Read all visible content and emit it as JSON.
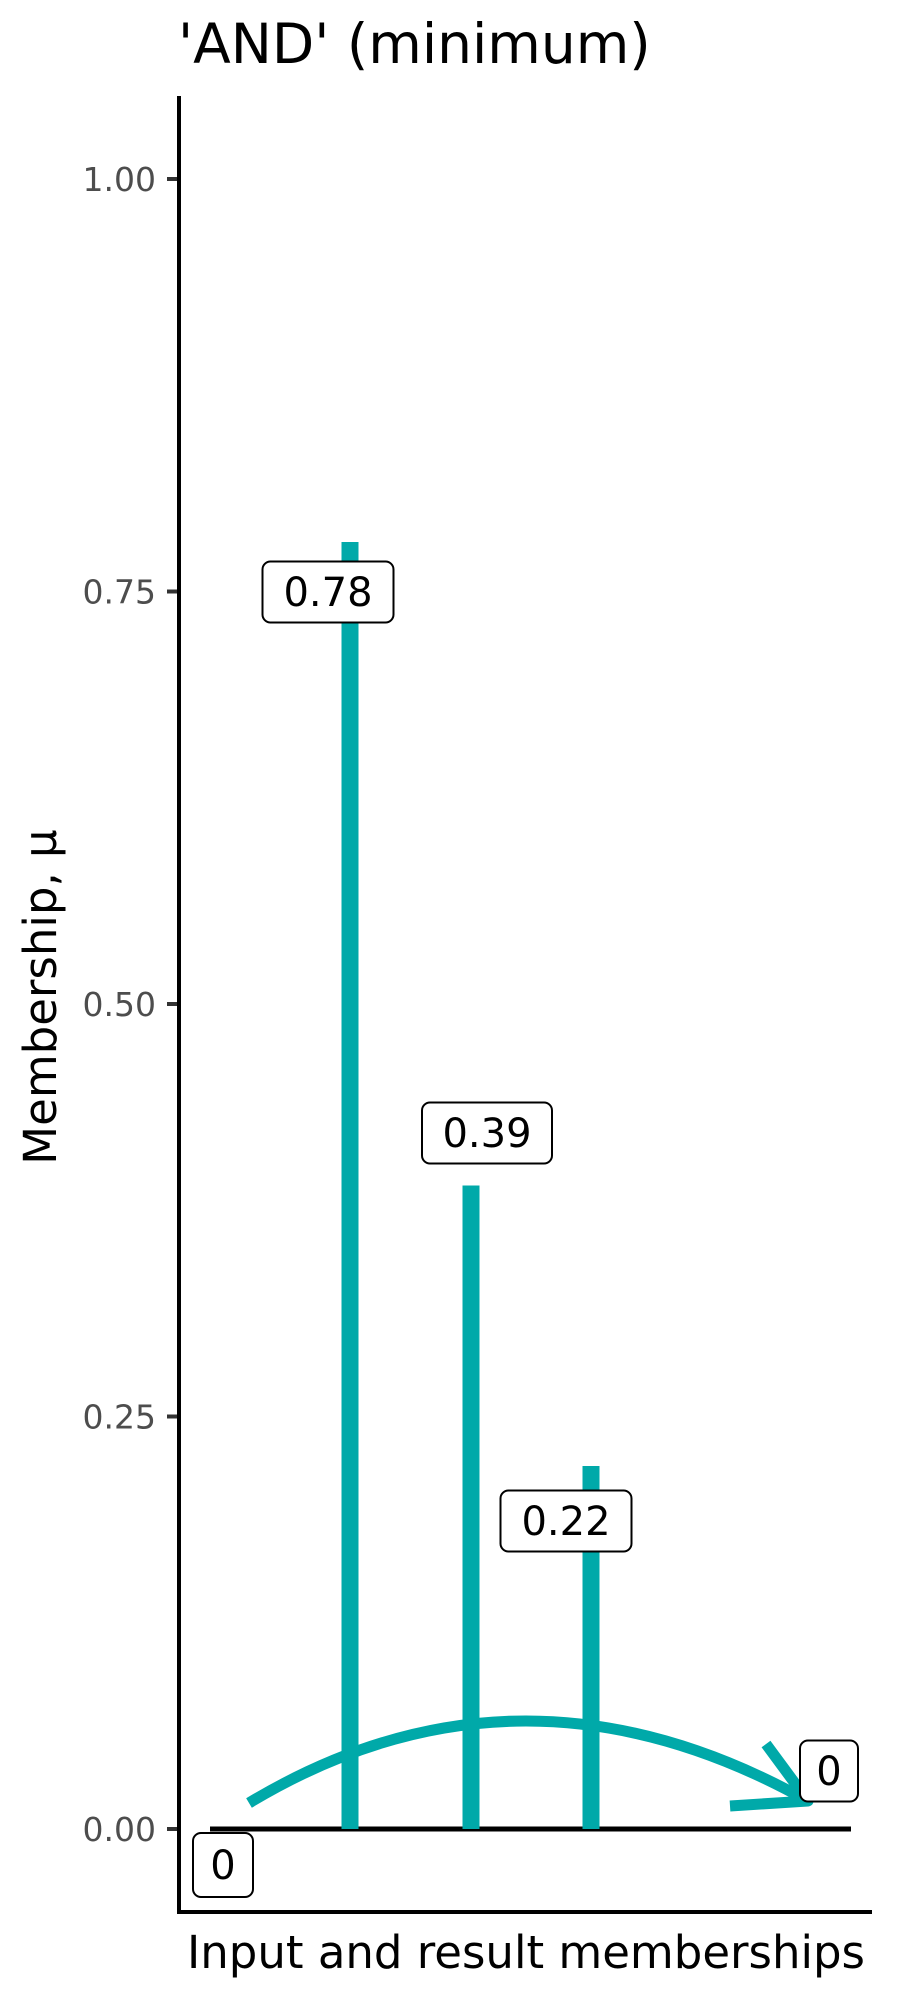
{
  "chart_data": {
    "type": "bar",
    "title": "'AND' (minimum)",
    "xlabel": "Input and result memberships",
    "ylabel": "Membership, μ",
    "ylim": [
      -0.05,
      1.05
    ],
    "yticks": [
      0.0,
      0.25,
      0.5,
      0.75,
      1.0
    ],
    "ytick_labels": [
      "0.00",
      "0.25",
      "0.50",
      "0.75",
      "1.00"
    ],
    "grid": false,
    "bars": [
      {
        "value": 0.78,
        "label": "0.78"
      },
      {
        "value": 0.39,
        "label": "0.39"
      },
      {
        "value": 0.22,
        "label": "0.22"
      }
    ],
    "baseline": {
      "value": 0,
      "label": "0"
    },
    "result": {
      "value": 0,
      "label": "0"
    },
    "annotations": [
      "curved arrow from inputs to result"
    ],
    "colors": {
      "bars": "#00a9a9",
      "arrow": "#00a9a9",
      "baseline": "#000000"
    }
  }
}
